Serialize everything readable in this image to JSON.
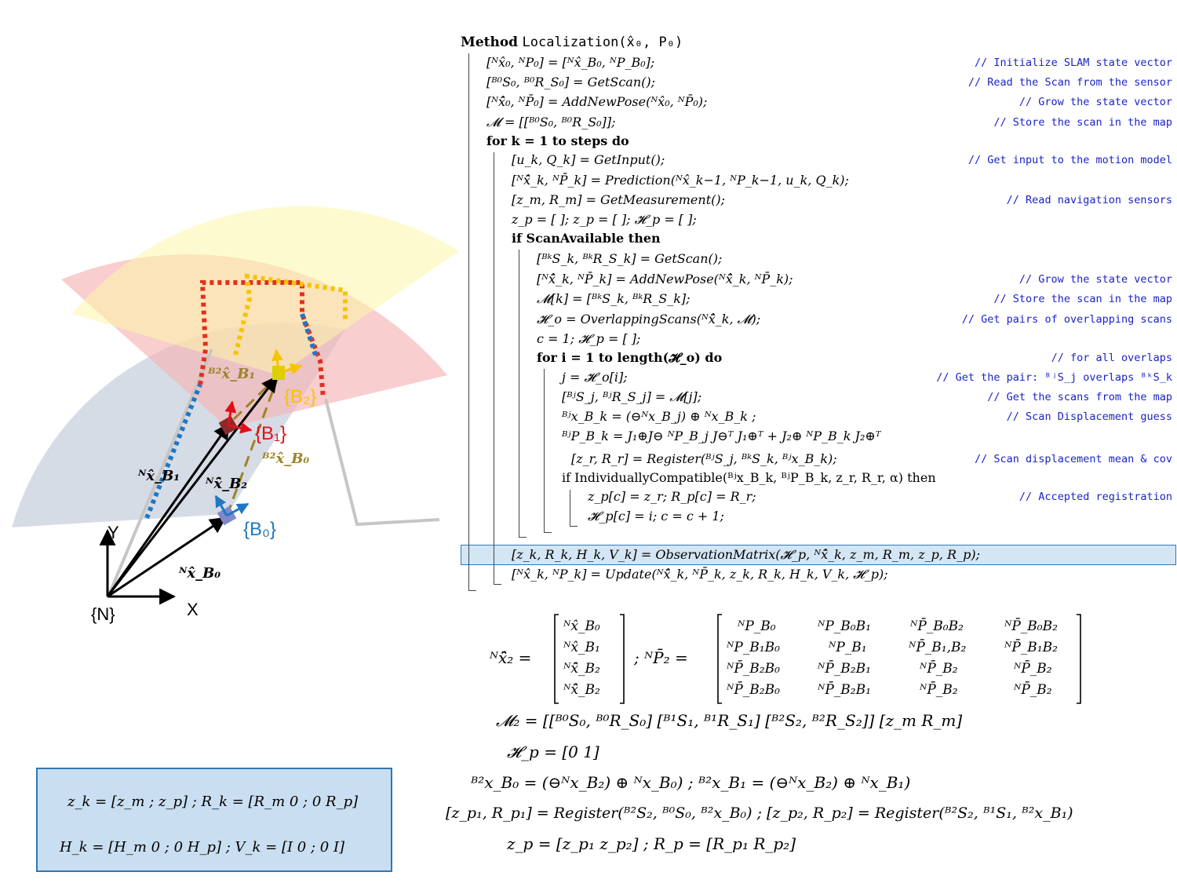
{
  "algorithm": {
    "header_keyword": "Method",
    "header_name": "Localization(x̂₀, P₀)",
    "lines": [
      {
        "text": "[ᴺx̂₀, ᴺP₀] = [ᴺx̂_B₀, ᴺP_B₀];",
        "comment": "// Initialize SLAM state vector"
      },
      {
        "text": "[ᴮ⁰S₀, ᴮ⁰R_S₀] = GetScan();",
        "comment": "// Read the Scan from the sensor"
      },
      {
        "text": "[ᴺx̂̄₀, ᴺP̄₀] = AddNewPose(ᴺx̂₀, ᴺP̄₀);",
        "comment": "// Grow the state vector"
      },
      {
        "text": "𝓜 = [[ᴮ⁰S₀, ᴮ⁰R_S₀]];",
        "comment": "// Store the scan in the map"
      },
      {
        "text": "for k = 1 to steps do",
        "comment": ""
      },
      {
        "text": "[u_k, Q_k] = GetInput();",
        "comment": "// Get input to the motion model"
      },
      {
        "text": "[ᴺx̂̄_k, ᴺP̄_k] = Prediction(ᴺx̂_k−1, ᴺP_k−1, u_k, Q_k);",
        "comment": ""
      },
      {
        "text": "[z_m, R_m] = GetMeasurement();",
        "comment": "// Read navigation sensors"
      },
      {
        "text": "z_p = [ ]; z_p = [ ]; 𝓗_p = [ ];",
        "comment": ""
      },
      {
        "text": "if ScanAvailable then",
        "comment": ""
      },
      {
        "text": "[ᴮᵏS_k, ᴮᵏR_S_k] = GetScan();",
        "comment": ""
      },
      {
        "text": "[ᴺx̂̄_k, ᴺP̄_k] = AddNewPose(ᴺx̂̄_k, ᴺP̄_k);",
        "comment": "// Grow the state vector"
      },
      {
        "text": "𝓜[k] = [ᴮᵏS_k, ᴮᵏR_S_k];",
        "comment": "// Store the scan in the map"
      },
      {
        "text": "𝓗_o = OverlappingScans(ᴺx̂̄_k, 𝓜);",
        "comment": "// Get pairs of overlapping scans"
      },
      {
        "text": "c = 1; 𝓗_p = [ ];",
        "comment": ""
      },
      {
        "text": "for i = 1 to length(𝓗_o) do",
        "comment": "// for all overlaps"
      },
      {
        "text": "j = 𝓗_o[i];",
        "comment": "// Get the pair:  ᴮʲS_j overlaps ᴮᵏS_k"
      },
      {
        "text": "[ᴮʲS_j, ᴮʲR_S_j] = 𝓜[j];",
        "comment": "// Get the scans from the map"
      },
      {
        "text": "ᴮʲx_B_k = (⊖ᴺx_B_j) ⊕ ᴺx_B_k ;",
        "comment": "// Scan Displacement guess"
      },
      {
        "text": "ᴮʲP_B_k = J₁⊕J⊖ ᴺP_B_j J⊖ᵀ J₁⊕ᵀ + J₂⊕ ᴺP_B_k J₂⊕ᵀ",
        "comment": ""
      },
      {
        "text": "[z_r, R_r] = Register(ᴮʲS_j, ᴮᵏS_k, ᴮʲx_B_k);",
        "comment": "// Scan displacement mean & cov"
      },
      {
        "text": "if IndividuallyCompatible(ᴮʲx_B_k, ᴮʲP_B_k, z_r, R_r, α) then",
        "comment": ""
      },
      {
        "text": "z_p[c] = z_r;  R_p[c] = R_r;",
        "comment": "// Accepted registration"
      },
      {
        "text": "𝓗_p[c] = i; c = c + 1;",
        "comment": ""
      },
      {
        "text": "[z_k, R_k, H_k, V_k] = ObservationMatrix(𝓗_p, ᴺx̂̄_k, z_m, R_m, z_p, R_p);",
        "comment": ""
      },
      {
        "text": "[ᴺx̂_k, ᴺP_k] = Update(ᴺx̂̄_k, ᴺP̄_k, z_k, R_k, H_k, V_k, 𝓗_p);",
        "comment": ""
      }
    ]
  },
  "equations": {
    "state_lhs": "ᴺx̂̄₂ =",
    "state_vector": [
      "ᴺx̂_B₀",
      "ᴺx̂_B₁",
      "ᴺx̂̄_B₂",
      "ᴺx̂̄_B₂"
    ],
    "cov_lhs": ";  ᴺP̄₂ =",
    "cov_matrix": [
      [
        "ᴺP_B₀",
        "ᴺP_B₀B₁",
        "ᴺP̄_B₀B₂",
        "ᴺP̄_B₀B₂"
      ],
      [
        "ᴺP_B₁B₀",
        "ᴺP_B₁",
        "ᴺP̄_B₁,B₂",
        "ᴺP̄_B₁B₂"
      ],
      [
        "ᴺP̄_B₂B₀",
        "ᴺP̄_B₂B₁",
        "ᴺP̄_B₂",
        "ᴺP̄_B₂"
      ],
      [
        "ᴺP̄_B₂B₀",
        "ᴺP̄_B₂B₁",
        "ᴺP̄_B₂",
        "ᴺP̄_B₂"
      ]
    ],
    "map": "𝓜₂ = [[ᴮ⁰S₀, ᴮ⁰R_S₀] [ᴮ¹S₁, ᴮ¹R_S₁] [ᴮ²S₂, ᴮ²R_S₂]]     [z_m   R_m]",
    "hp": "𝓗_p = [0   1]",
    "displacements": "ᴮ²x_B₀ = (⊖ᴺx_B₂) ⊕ ᴺx_B₀) ;   ᴮ²x_B₁ = (⊖ᴺx_B₂) ⊕ ᴺx_B₁)",
    "registers": "[z_p₁, R_p₁] = Register(ᴮ²S₂, ᴮ⁰S₀, ᴮ²x_B₀) ; [z_p₂, R_p₂] = Register(ᴮ²S₂, ᴮ¹S₁, ᴮ²x_B₁)",
    "zp_rp": "z_p = [z_p₁   z_p₂]  ;  R_p = [R_p₁   R_p₂]",
    "box_line1": "z_k = [z_m ; z_p]  ;  R_k = [R_m  0 ; 0  R_p]",
    "box_line2": "H_k = [H_m  0 ; 0  H_p]  ;  V_k = [I  0 ; 0  I]"
  },
  "diagram": {
    "frame_labels": {
      "n": "{N}",
      "b0": "{B₀}",
      "b1": "{B₁}",
      "b2": "{B₂}"
    },
    "axis_labels": {
      "x": "X",
      "y": "Y"
    },
    "vector_labels": {
      "n_b0": "ᴺx̂_B₀",
      "n_b1": "ᴺx̂_B₁",
      "n_b2": "ᴺx̂̄_B₂",
      "b2_b0": "ᴮ²x̂_B₀",
      "b2_b1": "ᴮ²x̂_B₁"
    },
    "colors": {
      "scan_b0": "#c8d0de",
      "scan_b1": "#f6b3b3",
      "scan_b2": "#fdf5a8",
      "path_blue": "#1f77c4",
      "path_red": "#e0301f",
      "path_yellow": "#f5c400",
      "dashed_olive": "#9c8428",
      "frame_b0": "#1f77c4",
      "frame_b1": "#e0101a",
      "frame_b2": "#f5c400",
      "highlight": "#d4e6f4",
      "comment": "#1a23c8"
    }
  }
}
